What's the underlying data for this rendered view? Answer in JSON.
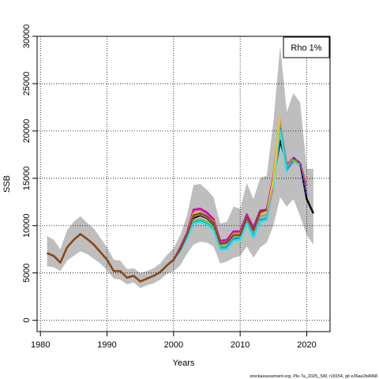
{
  "chart_data": {
    "type": "line",
    "title": "",
    "xlabel": "Years",
    "ylabel": "SSB",
    "xlim": [
      1979.5,
      2023.5
    ],
    "ylim": [
      -1200,
      30000
    ],
    "x_ticks": [
      1980,
      1990,
      2000,
      2010,
      2020
    ],
    "y_ticks": [
      0,
      5000,
      10000,
      15000,
      20000,
      25000,
      30000
    ],
    "grid": true,
    "legend": {
      "position": "top-right",
      "text": "Rho 1%"
    },
    "footer": "stockassessment.org, Ple.7a_2025_SW, r18154, git e36ae2b4968",
    "band": {
      "color": "#bebebe",
      "x": [
        1981,
        1982,
        1983,
        1984,
        1985,
        1986,
        1987,
        1988,
        1989,
        1990,
        1991,
        1992,
        1993,
        1994,
        1995,
        1996,
        1997,
        1998,
        1999,
        2000,
        2001,
        2002,
        2003,
        2004,
        2005,
        2006,
        2007,
        2008,
        2009,
        2010,
        2011,
        2012,
        2013,
        2014,
        2015,
        2016,
        2017,
        2018,
        2019,
        2020,
        2021
      ],
      "lower": [
        5700,
        5600,
        5200,
        6300,
        6800,
        7300,
        7000,
        6500,
        6000,
        5300,
        4400,
        4300,
        3800,
        4000,
        3400,
        3700,
        3900,
        4300,
        4900,
        5200,
        5800,
        7000,
        8000,
        8300,
        8200,
        7800,
        6000,
        6200,
        6600,
        6800,
        7800,
        6600,
        7700,
        8200,
        10000,
        13000,
        12000,
        12800,
        11000,
        9000,
        8000
      ],
      "upper": [
        8900,
        8500,
        7500,
        9500,
        10400,
        11000,
        10300,
        9700,
        8700,
        7700,
        6400,
        6300,
        5400,
        5500,
        5000,
        5200,
        5500,
        6000,
        6900,
        7600,
        9000,
        11000,
        14300,
        14400,
        13800,
        13000,
        10200,
        10400,
        12000,
        11800,
        14500,
        12800,
        15000,
        15300,
        21000,
        29000,
        22000,
        24000,
        23000,
        16000,
        16000
      ]
    },
    "series": [
      {
        "color": "#000000",
        "x": [
          1981,
          1982,
          1983,
          1984,
          1985,
          1986,
          1987,
          1988,
          1989,
          1990,
          1991,
          1992,
          1993,
          1994,
          1995,
          1996,
          1997,
          1998,
          1999,
          2000,
          2001,
          2002,
          2003,
          2004,
          2005,
          2006,
          2007,
          2008,
          2009,
          2010,
          2011,
          2012,
          2013,
          2014,
          2015,
          2016,
          2017,
          2018,
          2019,
          2020,
          2021
        ],
        "values": [
          7100,
          6800,
          6100,
          7700,
          8500,
          9100,
          8600,
          8000,
          7200,
          6400,
          5200,
          5200,
          4500,
          4700,
          4100,
          4400,
          4700,
          5100,
          5800,
          6400,
          7500,
          8900,
          10800,
          11100,
          10800,
          10100,
          8100,
          8300,
          9100,
          9200,
          11000,
          9600,
          11500,
          11700,
          15000,
          19000,
          16500,
          17000,
          16600,
          12800,
          11300
        ]
      },
      {
        "color": "#df536b",
        "x": [
          1981,
          1982,
          1983,
          1984,
          1985,
          1986,
          1987,
          1988,
          1989,
          1990,
          1991,
          1992,
          1993,
          1994,
          1995,
          1996,
          1997,
          1998,
          1999,
          2000,
          2001,
          2002,
          2003,
          2004,
          2005,
          2006,
          2007,
          2008,
          2009,
          2010,
          2011,
          2012,
          2013,
          2014,
          2015,
          2016,
          2017,
          2018,
          2019,
          2020
        ],
        "values": [
          7100,
          6800,
          6100,
          7700,
          8500,
          9100,
          8600,
          8000,
          7200,
          6400,
          5200,
          5200,
          4500,
          4700,
          4100,
          4400,
          4700,
          5100,
          5800,
          6400,
          7600,
          9100,
          11600,
          11700,
          11300,
          10600,
          8300,
          8400,
          9300,
          9300,
          11100,
          9700,
          11500,
          11600,
          15100,
          20700,
          16400,
          17200,
          16600,
          14200
        ]
      },
      {
        "color": "#61d04f",
        "x": [
          1981,
          1982,
          1983,
          1984,
          1985,
          1986,
          1987,
          1988,
          1989,
          1990,
          1991,
          1992,
          1993,
          1994,
          1995,
          1996,
          1997,
          1998,
          1999,
          2000,
          2001,
          2002,
          2003,
          2004,
          2005,
          2006,
          2007,
          2008,
          2009,
          2010,
          2011,
          2012,
          2013,
          2014,
          2015,
          2016,
          2017,
          2018,
          2019
        ],
        "values": [
          7100,
          6800,
          6100,
          7700,
          8500,
          9100,
          8600,
          8000,
          7200,
          6400,
          5200,
          5200,
          4500,
          4700,
          4100,
          4400,
          4700,
          5100,
          5800,
          6400,
          7400,
          8800,
          10500,
          10700,
          10400,
          9800,
          7800,
          7900,
          8800,
          8900,
          10600,
          9100,
          10900,
          11100,
          14700,
          20500,
          16100,
          16900,
          16400
        ]
      },
      {
        "color": "#2297e6",
        "x": [
          1981,
          1982,
          1983,
          1984,
          1985,
          1986,
          1987,
          1988,
          1989,
          1990,
          1991,
          1992,
          1993,
          1994,
          1995,
          1996,
          1997,
          1998,
          1999,
          2000,
          2001,
          2002,
          2003,
          2004,
          2005,
          2006,
          2007,
          2008,
          2009,
          2010,
          2011,
          2012,
          2013,
          2014,
          2015,
          2016,
          2017,
          2018
        ],
        "values": [
          7100,
          6800,
          6100,
          7700,
          8500,
          9100,
          8600,
          8000,
          7200,
          6400,
          5200,
          5200,
          4500,
          4700,
          4100,
          4400,
          4700,
          5100,
          5800,
          6400,
          7400,
          8700,
          10300,
          10500,
          10200,
          9600,
          7600,
          7700,
          8600,
          8700,
          10400,
          8900,
          10600,
          10800,
          14500,
          20300,
          15900,
          16800
        ]
      },
      {
        "color": "#28e2e5",
        "x": [
          1981,
          1982,
          1983,
          1984,
          1985,
          1986,
          1987,
          1988,
          1989,
          1990,
          1991,
          1992,
          1993,
          1994,
          1995,
          1996,
          1997,
          1998,
          1999,
          2000,
          2001,
          2002,
          2003,
          2004,
          2005,
          2006,
          2007,
          2008,
          2009,
          2010,
          2011,
          2012,
          2013,
          2014,
          2015,
          2016,
          2017
        ],
        "values": [
          7100,
          6800,
          6100,
          7700,
          8500,
          9100,
          8600,
          8000,
          7200,
          6400,
          5200,
          5200,
          4500,
          4700,
          4100,
          4400,
          4700,
          5100,
          5800,
          6400,
          7300,
          8600,
          10200,
          10400,
          10100,
          9500,
          7500,
          7500,
          8400,
          8500,
          10200,
          8700,
          10400,
          10600,
          14300,
          20000,
          15600
        ]
      },
      {
        "color": "#cd0bbc",
        "x": [
          1981,
          1982,
          1983,
          1984,
          1985,
          1986,
          1987,
          1988,
          1989,
          1990,
          1991,
          1992,
          1993,
          1994,
          1995,
          1996,
          1997,
          1998,
          1999,
          2000,
          2001,
          2002,
          2003,
          2004,
          2005,
          2006,
          2007,
          2008,
          2009,
          2010,
          2011,
          2012,
          2013,
          2014,
          2015,
          2016
        ],
        "values": [
          7100,
          6800,
          6100,
          7700,
          8500,
          9100,
          8600,
          8000,
          7200,
          6400,
          5200,
          5200,
          4500,
          4700,
          4100,
          4400,
          4700,
          5100,
          5800,
          6400,
          7700,
          9200,
          11700,
          11800,
          11400,
          10700,
          8400,
          8500,
          9400,
          9400,
          11200,
          9800,
          11600,
          11700,
          15200,
          21300
        ]
      },
      {
        "color": "#f5c710",
        "x": [
          1981,
          1982,
          1983,
          1984,
          1985,
          1986,
          1987,
          1988,
          1989,
          1990,
          1991,
          1992,
          1993,
          1994,
          1995,
          1996,
          1997,
          1998,
          1999,
          2000,
          2001,
          2002,
          2003,
          2004,
          2005,
          2006,
          2007,
          2008,
          2009,
          2010,
          2011,
          2012,
          2013,
          2014,
          2015,
          2016
        ],
        "values": [
          7100,
          6800,
          6100,
          7700,
          8500,
          9100,
          8600,
          8000,
          7200,
          6400,
          5200,
          5200,
          4500,
          4700,
          4100,
          4400,
          4700,
          5100,
          5800,
          6400,
          7500,
          9000,
          11300,
          11300,
          11000,
          10400,
          8100,
          8200,
          9100,
          9100,
          10900,
          9400,
          11200,
          11300,
          14900,
          21500
        ]
      },
      {
        "color": "#9e9e9e",
        "x": [
          1981,
          1982,
          1983,
          1984,
          1985,
          1986,
          1987,
          1988,
          1989,
          1990,
          1991,
          1992,
          1993,
          1994,
          1995,
          1996,
          1997,
          1998,
          1999,
          2000,
          2001,
          2002,
          2003,
          2004,
          2005,
          2006,
          2007,
          2008,
          2009,
          2010,
          2011,
          2012,
          2013,
          2014,
          2015
        ],
        "values": [
          7100,
          6800,
          6100,
          7700,
          8500,
          9100,
          8600,
          8000,
          7200,
          6400,
          5200,
          5200,
          4500,
          4700,
          4100,
          4400,
          4700,
          5100,
          5800,
          6400,
          7500,
          9000,
          11000,
          11200,
          10900,
          10200,
          8000,
          8100,
          9000,
          9000,
          10800,
          9300,
          11000,
          11200,
          14000
        ]
      },
      {
        "color": "#8b4513",
        "x": [
          1981,
          1982,
          1983,
          1984,
          1985,
          1986,
          1987,
          1988,
          1989,
          1990,
          1991,
          1992,
          1993,
          1994,
          1995,
          1996,
          1997,
          1998,
          1999,
          2000,
          2001,
          2002,
          2003,
          2004,
          2005,
          2006,
          2007,
          2008,
          2009,
          2010,
          2011,
          2012,
          2013,
          2014
        ],
        "values": [
          7100,
          6800,
          6100,
          7700,
          8500,
          9100,
          8600,
          8000,
          7200,
          6400,
          5200,
          5200,
          4500,
          4700,
          4100,
          4400,
          4700,
          5100,
          5800,
          6400,
          7500,
          9000,
          11100,
          11300,
          11000,
          10300,
          8100,
          8200,
          9000,
          9000,
          10900,
          9500,
          11400,
          11700
        ]
      },
      {
        "color": "#3f3fbf",
        "dashed": true,
        "x": [
          2018,
          2019,
          2020
        ],
        "values": [
          17200,
          16600,
          13200
        ]
      }
    ]
  }
}
